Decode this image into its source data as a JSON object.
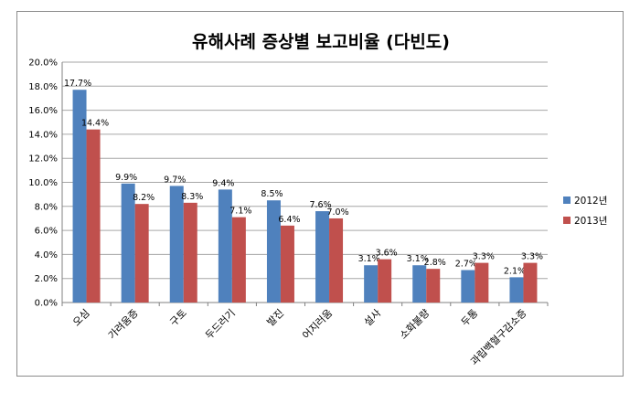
{
  "chart_data": {
    "type": "bar",
    "title": "유해사례 증상별 보고비율 (다빈도)",
    "xlabel": "",
    "ylabel": "",
    "categories": [
      "오심",
      "가려움증",
      "구토",
      "두드러기",
      "발진",
      "어지러움",
      "설사",
      "소화불량",
      "두통",
      "과립백혈구감소증"
    ],
    "series": [
      {
        "name": "2012년",
        "color": "#4f81bd",
        "values": [
          17.7,
          9.9,
          9.7,
          9.4,
          8.5,
          7.6,
          3.1,
          3.1,
          2.7,
          2.1
        ],
        "labels": [
          "17.7%",
          "9.9%",
          "9.7%",
          "9.4%",
          "8.5%",
          "7.6%",
          "3.1%",
          "3.1%",
          "2.7%",
          "2.1%"
        ]
      },
      {
        "name": "2013년",
        "color": "#c0504d",
        "values": [
          14.4,
          8.2,
          8.3,
          7.1,
          6.4,
          7.0,
          3.6,
          2.8,
          3.3,
          3.3
        ],
        "labels": [
          "14.4%",
          "8.2%",
          "8.3%",
          "7.1%",
          "6.4%",
          "7.0%",
          "3.6%",
          "2.8%",
          "3.3%",
          "3.3%"
        ]
      }
    ],
    "ylim": [
      0,
      20
    ],
    "yticks": [
      0,
      2,
      4,
      6,
      8,
      10,
      12,
      14,
      16,
      18,
      20
    ],
    "ytick_labels": [
      "0.0%",
      "2.0%",
      "4.0%",
      "6.0%",
      "8.0%",
      "10.0%",
      "12.0%",
      "14.0%",
      "16.0%",
      "18.0%",
      "20.0%"
    ],
    "grid": true,
    "legend_position": "right"
  }
}
